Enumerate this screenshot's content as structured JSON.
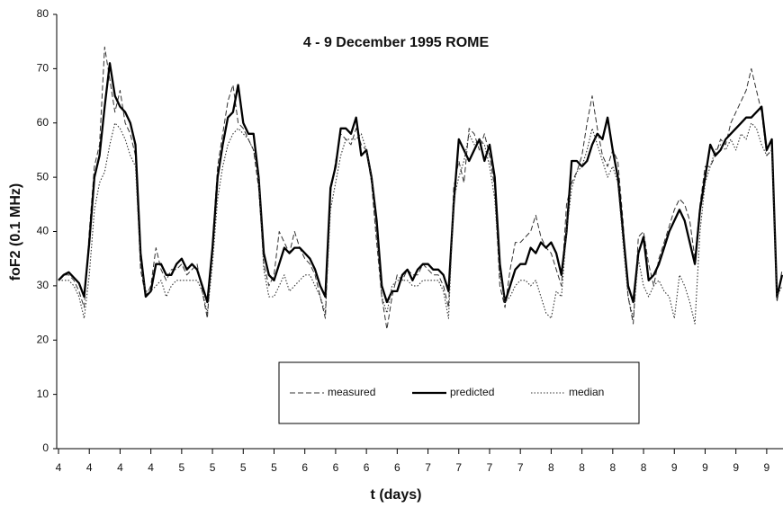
{
  "chart_data": {
    "type": "line",
    "title": "4 - 9 December 1995 ROME",
    "x_label": "t (days)",
    "y_label": "foF2 (0.1 MHz)",
    "x": [
      0,
      1,
      2,
      3,
      4,
      5,
      6,
      7,
      8,
      9,
      10,
      11,
      12,
      13,
      14,
      15,
      16,
      17,
      18,
      19,
      20,
      21,
      22,
      23,
      24,
      25,
      26,
      27,
      28,
      29,
      30,
      31,
      32,
      33,
      34,
      35,
      36,
      37,
      38,
      39,
      40,
      41,
      42,
      43,
      44,
      45,
      46,
      47,
      48,
      49,
      50,
      51,
      52,
      53,
      54,
      55,
      56,
      57,
      58,
      59,
      60,
      61,
      62,
      63,
      64,
      65,
      66,
      67,
      68,
      69,
      70,
      71,
      72,
      73,
      74,
      75,
      76,
      77,
      78,
      79,
      80,
      81,
      82,
      83,
      84,
      85,
      86,
      87,
      88,
      89,
      90,
      91,
      92,
      93,
      94,
      95,
      96,
      97,
      98,
      99,
      100,
      101,
      102,
      103,
      104,
      105,
      106,
      107,
      108,
      109,
      110,
      111,
      112,
      113,
      114,
      115,
      116,
      117,
      118,
      119,
      120,
      121,
      122,
      123,
      124,
      125,
      126,
      127,
      128,
      129,
      130,
      131,
      132,
      133,
      134,
      135,
      136,
      137,
      138,
      139,
      140,
      141
    ],
    "series": [
      {
        "name": "measured",
        "color": "#333333",
        "style": "dashed",
        "values": [
          31,
          32,
          32,
          31,
          29,
          26,
          40,
          52,
          56,
          74,
          68,
          62,
          66,
          60,
          58,
          54,
          33,
          28,
          30,
          37,
          33,
          31,
          33,
          33,
          34,
          32,
          33,
          34,
          29,
          24,
          38,
          52,
          58,
          64,
          67,
          60,
          59,
          57,
          55,
          48,
          34,
          30,
          32,
          40,
          38,
          36,
          40,
          37,
          35,
          34,
          32,
          28,
          24,
          47,
          53,
          58,
          57,
          56,
          59,
          56,
          55,
          49,
          38,
          28,
          22,
          28,
          32,
          31,
          33,
          32,
          32,
          34,
          33,
          32,
          32,
          30,
          26,
          48,
          53,
          49,
          59,
          58,
          55,
          58,
          54,
          48,
          30,
          26,
          33,
          38,
          38,
          39,
          40,
          43,
          39,
          37,
          36,
          33,
          30,
          45,
          49,
          51,
          54,
          60,
          65,
          59,
          54,
          52,
          55,
          53,
          42,
          28,
          23,
          39,
          40,
          34,
          30,
          35,
          38,
          41,
          44,
          46,
          45,
          42,
          35,
          45,
          52,
          52,
          54,
          57,
          56,
          60,
          62,
          64,
          66,
          70,
          66,
          62,
          54,
          55,
          27,
          33
        ]
      },
      {
        "name": "predicted",
        "color": "#000000",
        "style": "solid",
        "values": [
          31,
          32,
          32.5,
          31.5,
          30.5,
          28,
          38,
          50,
          54,
          63,
          71,
          65,
          63,
          62,
          60,
          56,
          36,
          28,
          29,
          34,
          34,
          32,
          32,
          34,
          35,
          33,
          34,
          33,
          30,
          27,
          37,
          50,
          56,
          61,
          62,
          67,
          60,
          58,
          58,
          50,
          36,
          32,
          31,
          34,
          37,
          36,
          37,
          37,
          36,
          35,
          33,
          30,
          28,
          48,
          52,
          59,
          59,
          58,
          61,
          54,
          55,
          50,
          42,
          30,
          27,
          29,
          29,
          32,
          33,
          31,
          33,
          34,
          34,
          33,
          33,
          32,
          29,
          45,
          57,
          55,
          53,
          55,
          57,
          53,
          56,
          50,
          34,
          27,
          30,
          33,
          34,
          34,
          37,
          36,
          38,
          37,
          38,
          36,
          32,
          40,
          53,
          53,
          52,
          53,
          56,
          58,
          57,
          61,
          55,
          50,
          40,
          30,
          27,
          36,
          39,
          31,
          32,
          34,
          37,
          40,
          42,
          44,
          42,
          38,
          34,
          44,
          50,
          56,
          54,
          55,
          57,
          58,
          59,
          60,
          61,
          61,
          62,
          63,
          55,
          57,
          28,
          32
        ]
      },
      {
        "name": "median",
        "color": "#333333",
        "style": "dotted",
        "values": [
          31,
          31,
          31,
          30,
          28,
          24,
          32,
          44,
          49,
          51,
          56,
          60,
          59,
          57,
          54,
          52,
          34,
          29,
          29,
          30,
          31,
          28,
          30,
          31,
          31,
          31,
          31,
          31,
          29,
          25,
          34,
          46,
          52,
          56,
          58,
          59,
          58,
          57,
          55,
          50,
          33,
          28,
          28,
          30,
          32,
          29,
          30,
          31,
          32,
          32,
          30,
          28,
          25,
          44,
          49,
          54,
          57,
          57,
          57,
          58,
          55,
          50,
          40,
          28,
          25,
          30,
          31,
          31,
          31,
          30,
          30,
          31,
          31,
          31,
          31,
          29,
          24,
          46,
          50,
          53,
          58,
          56,
          57,
          56,
          52,
          46,
          32,
          27,
          28,
          30,
          31,
          31,
          30,
          31,
          28,
          25,
          24,
          29,
          28,
          40,
          48,
          51,
          52,
          55,
          59,
          56,
          53,
          50,
          52,
          49,
          38,
          28,
          24,
          35,
          30,
          28,
          30,
          31,
          29,
          28,
          24,
          32,
          30,
          27,
          23,
          40,
          49,
          52,
          55,
          56,
          55,
          57,
          55,
          58,
          57,
          60,
          59,
          56,
          54,
          55,
          28,
          30
        ]
      }
    ],
    "xlim": [
      0,
      141
    ],
    "xticks": [
      {
        "value": 0,
        "label": "4"
      },
      {
        "value": 6,
        "label": "4"
      },
      {
        "value": 12,
        "label": "4"
      },
      {
        "value": 18,
        "label": "4"
      },
      {
        "value": 24,
        "label": "5"
      },
      {
        "value": 30,
        "label": "5"
      },
      {
        "value": 36,
        "label": "5"
      },
      {
        "value": 42,
        "label": "5"
      },
      {
        "value": 48,
        "label": "6"
      },
      {
        "value": 54,
        "label": "6"
      },
      {
        "value": 60,
        "label": "6"
      },
      {
        "value": 66,
        "label": "6"
      },
      {
        "value": 72,
        "label": "7"
      },
      {
        "value": 78,
        "label": "7"
      },
      {
        "value": 84,
        "label": "7"
      },
      {
        "value": 90,
        "label": "7"
      },
      {
        "value": 96,
        "label": "8"
      },
      {
        "value": 102,
        "label": "8"
      },
      {
        "value": 108,
        "label": "8"
      },
      {
        "value": 114,
        "label": "8"
      },
      {
        "value": 120,
        "label": "9"
      },
      {
        "value": 126,
        "label": "9"
      },
      {
        "value": 132,
        "label": "9"
      },
      {
        "value": 138,
        "label": "9"
      }
    ],
    "ylim": [
      0,
      80
    ],
    "yticks": [
      0,
      10,
      20,
      30,
      40,
      50,
      60,
      70,
      80
    ],
    "grid": false,
    "legend": "bottom"
  }
}
